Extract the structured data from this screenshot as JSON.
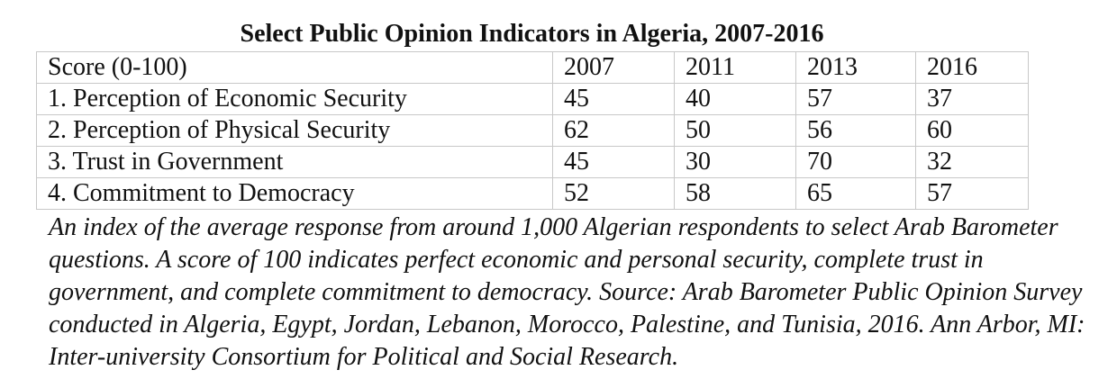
{
  "title": "Select Public Opinion Indicators in Algeria, 2007-2016",
  "table": {
    "header": [
      "Score (0-100)",
      "2007",
      "2011",
      "2013",
      "2016"
    ],
    "rows": [
      [
        "1. Perception of Economic Security",
        "45",
        "40",
        "57",
        "37"
      ],
      [
        "2. Perception of Physical Security",
        "62",
        "50",
        "56",
        "60"
      ],
      [
        "3. Trust in Government",
        "45",
        "30",
        "70",
        "32"
      ],
      [
        "4. Commitment to Democracy",
        "52",
        "58",
        "65",
        "57"
      ]
    ]
  },
  "note": "An index of the average response from around 1,000 Algerian respondents to select Arab Barometer questions. A score of 100 indicates perfect economic and personal security, complete trust in government, and complete commitment to democracy. Source: Arab Barometer Public Opinion Survey conducted in Algeria, Egypt, Jordan, Lebanon, Morocco, Palestine, and Tunisia, 2016. Ann Arbor, MI: Inter-university Consortium for Political and Social Research."
}
